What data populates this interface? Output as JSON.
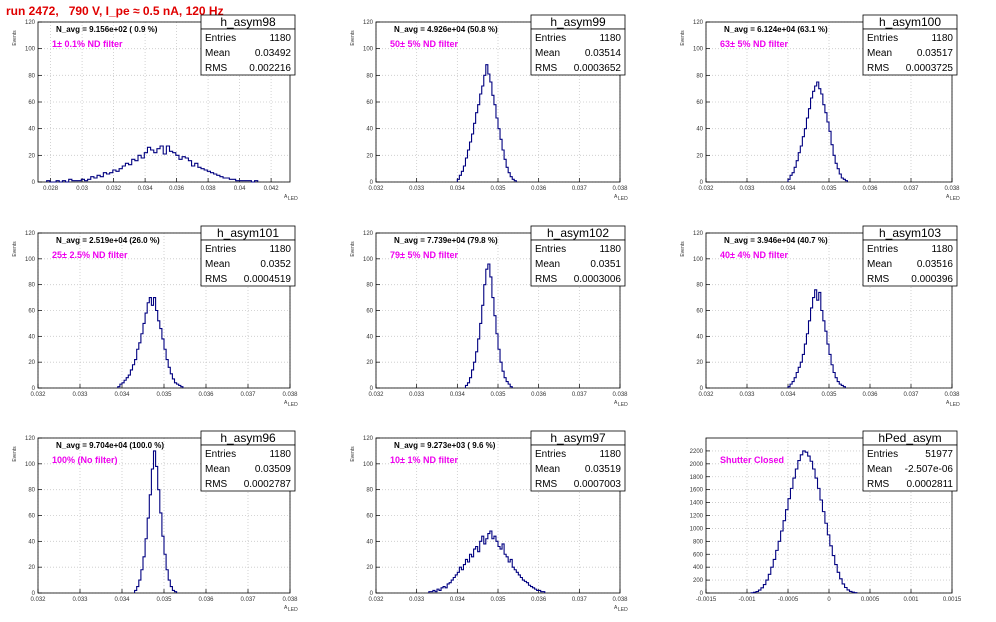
{
  "page": {
    "title": "run 2472,   790 V, I_pe ≈ 0.5 nA, 120 Hz"
  },
  "chart_data": [
    {
      "type": "histogram",
      "name": "h_asym98",
      "navg": "N_avg = 9.156e+02 ( 0.9 %)",
      "filter": "1± 0.1% ND filter",
      "stats": {
        "entries": "1180",
        "mean": "0.03492",
        "rms": "0.002216"
      },
      "xlabel": "A",
      "xlabel_sub": "LED",
      "ylabel": "Events",
      "xlim": [
        0.0272,
        0.0432
      ],
      "ylim": [
        0,
        120
      ],
      "xticks": [
        0.028,
        0.03,
        0.032,
        0.034,
        0.036,
        0.038,
        0.04,
        0.042
      ],
      "xtick_labels": [
        "0.028",
        "0.03",
        "0.032",
        "0.034",
        "0.036",
        "0.038",
        "0.04",
        "0.042"
      ],
      "yticks": [
        0,
        20,
        40,
        60,
        80,
        100,
        120
      ],
      "bins": {
        "start": 0.02775,
        "width": 0.0002,
        "counts": [
          1,
          0,
          0,
          1,
          0,
          1,
          0,
          2,
          1,
          1,
          1,
          2,
          1,
          2,
          4,
          3,
          5,
          4,
          7,
          6,
          7,
          9,
          8,
          10,
          12,
          14,
          13,
          17,
          16,
          20,
          18,
          22,
          26,
          24,
          22,
          25,
          27,
          21,
          27,
          23,
          22,
          20,
          17,
          19,
          18,
          16,
          12,
          14,
          11,
          10,
          9,
          8,
          7,
          6,
          5,
          4,
          3,
          3,
          2,
          2,
          1,
          1,
          1,
          1,
          1,
          0,
          1
        ]
      }
    },
    {
      "type": "histogram",
      "name": "h_asym99",
      "navg": "N_avg = 4.926e+04 (50.8 %)",
      "filter": "50± 5% ND filter",
      "stats": {
        "entries": "1180",
        "mean": "0.03514",
        "rms": "0.0003652"
      },
      "xlabel": "A",
      "xlabel_sub": "LED",
      "ylabel": "Events",
      "xlim": [
        0.032,
        0.038
      ],
      "ylim": [
        0,
        120
      ],
      "xticks": [
        0.032,
        0.033,
        0.034,
        0.035,
        0.036,
        0.037,
        0.038
      ],
      "xtick_labels": [
        "0.032",
        "0.033",
        "0.034",
        "0.035",
        "0.036",
        "0.037",
        "0.038"
      ],
      "yticks": [
        0,
        20,
        40,
        60,
        80,
        100,
        120
      ],
      "bins": {
        "start": 0.034,
        "width": 5e-05,
        "counts": [
          2,
          5,
          8,
          12,
          18,
          24,
          30,
          36,
          44,
          52,
          58,
          66,
          72,
          80,
          88,
          81,
          75,
          65,
          58,
          48,
          40,
          32,
          24,
          17,
          11,
          7,
          4,
          2,
          1
        ]
      }
    },
    {
      "type": "histogram",
      "name": "h_asym100",
      "navg": "N_avg = 6.124e+04 (63.1 %)",
      "filter": "63± 5% ND filter",
      "stats": {
        "entries": "1180",
        "mean": "0.03517",
        "rms": "0.0003725"
      },
      "xlabel": "A",
      "xlabel_sub": "LED",
      "ylabel": "Events",
      "xlim": [
        0.032,
        0.038
      ],
      "ylim": [
        0,
        120
      ],
      "xticks": [
        0.032,
        0.033,
        0.034,
        0.035,
        0.036,
        0.037,
        0.038
      ],
      "xtick_labels": [
        "0.032",
        "0.033",
        "0.034",
        "0.035",
        "0.036",
        "0.037",
        "0.038"
      ],
      "yticks": [
        0,
        20,
        40,
        60,
        80,
        100,
        120
      ],
      "bins": {
        "start": 0.034,
        "width": 5e-05,
        "counts": [
          2,
          5,
          7,
          11,
          16,
          22,
          27,
          34,
          40,
          48,
          55,
          63,
          68,
          72,
          75,
          70,
          66,
          58,
          52,
          45,
          38,
          28,
          20,
          14,
          10,
          6,
          3,
          2,
          1
        ]
      }
    },
    {
      "type": "histogram",
      "name": "h_asym101",
      "navg": "N_avg = 2.519e+04 (26.0 %)",
      "filter": "25± 2.5% ND filter",
      "stats": {
        "entries": "1180",
        "mean": "0.0352",
        "rms": "0.0004519"
      },
      "xlabel": "A",
      "xlabel_sub": "LED",
      "ylabel": "Events",
      "xlim": [
        0.032,
        0.038
      ],
      "ylim": [
        0,
        120
      ],
      "xticks": [
        0.032,
        0.033,
        0.034,
        0.035,
        0.036,
        0.037,
        0.038
      ],
      "xtick_labels": [
        "0.032",
        "0.033",
        "0.034",
        "0.035",
        "0.036",
        "0.037",
        "0.038"
      ],
      "yticks": [
        0,
        20,
        40,
        60,
        80,
        100,
        120
      ],
      "bins": {
        "start": 0.0339,
        "width": 5e-05,
        "counts": [
          1,
          3,
          4,
          6,
          8,
          10,
          14,
          18,
          22,
          30,
          35,
          42,
          50,
          58,
          66,
          70,
          64,
          70,
          60,
          52,
          46,
          38,
          30,
          22,
          16,
          11,
          7,
          4,
          3,
          2,
          1
        ]
      }
    },
    {
      "type": "histogram",
      "name": "h_asym102",
      "navg": "N_avg = 7.739e+04 (79.8 %)",
      "filter": "79± 5% ND filter",
      "stats": {
        "entries": "1180",
        "mean": "0.0351",
        "rms": "0.0003006"
      },
      "xlabel": "A",
      "xlabel_sub": "LED",
      "ylabel": "Events",
      "xlim": [
        0.032,
        0.038
      ],
      "ylim": [
        0,
        120
      ],
      "xticks": [
        0.032,
        0.033,
        0.034,
        0.035,
        0.036,
        0.037,
        0.038
      ],
      "xtick_labels": [
        "0.032",
        "0.033",
        "0.034",
        "0.035",
        "0.036",
        "0.037",
        "0.038"
      ],
      "yticks": [
        0,
        20,
        40,
        60,
        80,
        100,
        120
      ],
      "bins": {
        "start": 0.0342,
        "width": 5e-05,
        "counts": [
          2,
          4,
          8,
          14,
          20,
          28,
          38,
          50,
          64,
          80,
          92,
          96,
          86,
          70,
          56,
          42,
          30,
          20,
          13,
          8,
          5,
          3,
          1
        ]
      }
    },
    {
      "type": "histogram",
      "name": "h_asym103",
      "navg": "N_avg = 3.946e+04 (40.7 %)",
      "filter": "40± 4% ND filter",
      "stats": {
        "entries": "1180",
        "mean": "0.03516",
        "rms": "0.000396"
      },
      "xlabel": "A",
      "xlabel_sub": "LED",
      "ylabel": "Events",
      "xlim": [
        0.032,
        0.038
      ],
      "ylim": [
        0,
        120
      ],
      "xticks": [
        0.032,
        0.033,
        0.034,
        0.035,
        0.036,
        0.037,
        0.038
      ],
      "xtick_labels": [
        "0.032",
        "0.033",
        "0.034",
        "0.035",
        "0.036",
        "0.037",
        "0.038"
      ],
      "yticks": [
        0,
        20,
        40,
        60,
        80,
        100,
        120
      ],
      "bins": {
        "start": 0.034,
        "width": 5e-05,
        "counts": [
          1,
          3,
          5,
          8,
          12,
          16,
          20,
          26,
          34,
          42,
          52,
          62,
          70,
          76,
          68,
          74,
          60,
          52,
          44,
          34,
          26,
          18,
          12,
          8,
          5,
          3,
          2,
          1
        ]
      }
    },
    {
      "type": "histogram",
      "name": "h_asym96",
      "navg": "N_avg = 9.704e+04 (100.0 %)",
      "filter": "100% (No filter)",
      "stats": {
        "entries": "1180",
        "mean": "0.03509",
        "rms": "0.0002787"
      },
      "xlabel": "A",
      "xlabel_sub": "LED",
      "ylabel": "Events",
      "xlim": [
        0.032,
        0.038
      ],
      "ylim": [
        0,
        120
      ],
      "xticks": [
        0.032,
        0.033,
        0.034,
        0.035,
        0.036,
        0.037,
        0.038
      ],
      "xtick_labels": [
        "0.032",
        "0.033",
        "0.034",
        "0.035",
        "0.036",
        "0.037",
        "0.038"
      ],
      "yticks": [
        0,
        20,
        40,
        60,
        80,
        100,
        120
      ],
      "bins": {
        "start": 0.0343,
        "width": 5e-05,
        "counts": [
          2,
          5,
          10,
          18,
          28,
          42,
          58,
          76,
          96,
          110,
          98,
          80,
          62,
          44,
          30,
          18,
          10,
          5,
          2,
          1
        ]
      }
    },
    {
      "type": "histogram",
      "name": "h_asym97",
      "navg": "N_avg = 9.273e+03 ( 9.6 %)",
      "filter": "10± 1% ND filter",
      "stats": {
        "entries": "1180",
        "mean": "0.03519",
        "rms": "0.0007003"
      },
      "xlabel": "A",
      "xlabel_sub": "LED",
      "ylabel": "Events",
      "xlim": [
        0.032,
        0.038
      ],
      "ylim": [
        0,
        120
      ],
      "xticks": [
        0.032,
        0.033,
        0.034,
        0.035,
        0.036,
        0.037,
        0.038
      ],
      "xtick_labels": [
        "0.032",
        "0.033",
        "0.034",
        "0.035",
        "0.036",
        "0.037",
        "0.038"
      ],
      "yticks": [
        0,
        20,
        40,
        60,
        80,
        100,
        120
      ],
      "bins": {
        "start": 0.0333,
        "width": 5e-05,
        "counts": [
          1,
          1,
          2,
          1,
          3,
          2,
          4,
          5,
          4,
          7,
          8,
          10,
          12,
          14,
          16,
          20,
          18,
          22,
          26,
          24,
          30,
          28,
          34,
          36,
          32,
          40,
          44,
          38,
          42,
          46,
          48,
          42,
          44,
          40,
          36,
          34,
          38,
          30,
          28,
          24,
          26,
          20,
          18,
          16,
          14,
          12,
          10,
          9,
          8,
          6,
          5,
          4,
          3,
          2,
          2,
          1,
          1
        ]
      }
    },
    {
      "type": "histogram",
      "name": "hPed_asym",
      "navg": "",
      "filter": "Shutter Closed",
      "stats": {
        "entries": "51977",
        "mean": "-2.507e-06",
        "rms": "0.0002811"
      },
      "xlabel": "",
      "xlabel_sub": "",
      "ylabel": "",
      "xlim": [
        -0.0015,
        0.0015
      ],
      "ylim": [
        0,
        2400
      ],
      "xticks": [
        -0.0015,
        -0.001,
        -0.0005,
        0,
        0.0005,
        0.001,
        0.0015
      ],
      "xtick_labels": [
        "-0.0015",
        "-0.001",
        "-0.0005",
        "0",
        "0.0005",
        "0.001",
        "0.0015"
      ],
      "yticks": [
        0,
        200,
        400,
        600,
        800,
        1000,
        1200,
        1400,
        1600,
        1800,
        2000,
        2200
      ],
      "bins": {
        "start": -0.00095,
        "width": 3e-05,
        "counts": [
          4,
          10,
          22,
          45,
          80,
          130,
          200,
          290,
          400,
          520,
          660,
          800,
          960,
          1120,
          1290,
          1460,
          1620,
          1780,
          1920,
          2050,
          2140,
          2200,
          2180,
          2120,
          2040,
          1920,
          1780,
          1620,
          1440,
          1260,
          1080,
          900,
          730,
          580,
          440,
          320,
          220,
          140,
          85,
          48,
          24,
          12,
          5
        ]
      }
    }
  ]
}
